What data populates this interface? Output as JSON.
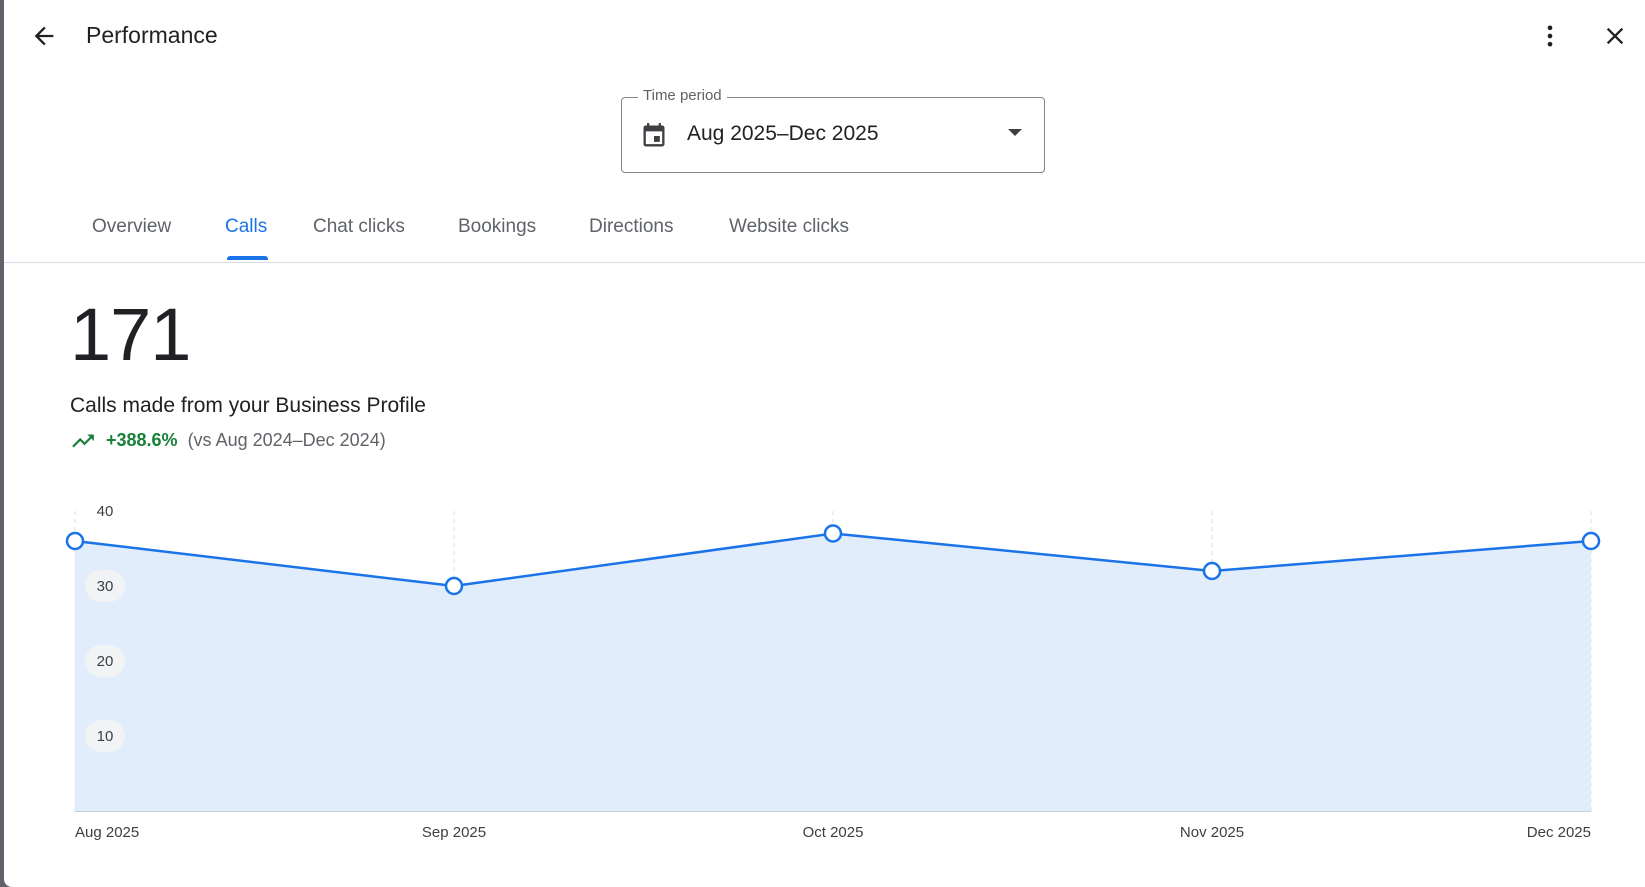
{
  "header": {
    "title": "Performance",
    "back_icon": "arrow-back-icon",
    "more_icon": "more-vert-icon",
    "close_icon": "close-icon"
  },
  "time_period": {
    "label": "Time period",
    "value": "Aug 2025–Dec 2025",
    "icon": "calendar-icon"
  },
  "tabs": [
    {
      "label": "Overview",
      "active": false
    },
    {
      "label": "Calls",
      "active": true
    },
    {
      "label": "Chat clicks",
      "active": false
    },
    {
      "label": "Bookings",
      "active": false
    },
    {
      "label": "Directions",
      "active": false
    },
    {
      "label": "Website clicks",
      "active": false
    }
  ],
  "metric": {
    "value": "171",
    "label": "Calls made from your Business Profile",
    "change": "+388.6%",
    "comparison": "(vs Aug 2024–Dec 2024)",
    "trend_icon": "trending-up-icon"
  },
  "colors": {
    "accent": "#1a73e8",
    "area": "#e2edfc",
    "positive": "#188038"
  },
  "chart_data": {
    "type": "area",
    "x": [
      "Aug 2025",
      "Sep 2025",
      "Oct 2025",
      "Nov 2025",
      "Dec 2025"
    ],
    "values": [
      36,
      30,
      37,
      32,
      36
    ],
    "yticks": [
      10,
      20,
      30,
      40
    ],
    "ylim": [
      0,
      40
    ],
    "grid": "vertical-dashed"
  }
}
